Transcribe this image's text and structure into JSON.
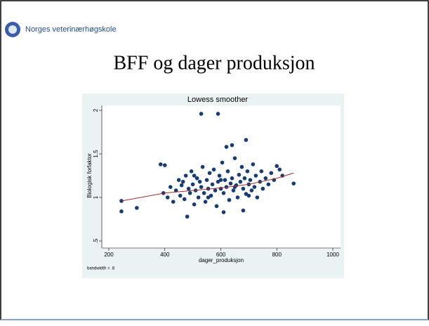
{
  "header": {
    "logo_text": "Norges veterinærhøgskole",
    "slide_title": "BFF og dager produksjon"
  },
  "chart_data": {
    "type": "scatter",
    "title": "Lowess smoother",
    "x_label": "dager_produksjon",
    "y_label": "Biologisk forfaktor",
    "note": "bandwidth = .8",
    "xlim": [
      200,
      1000
    ],
    "xticks": [
      200,
      400,
      600,
      800,
      1000
    ],
    "ylim": [
      0.5,
      2
    ],
    "yticks": [
      {
        "value": 0.5,
        "label": ".5"
      },
      1,
      1.5,
      2
    ],
    "series": [
      {
        "color": "#1a3b6e",
        "x": [
          245,
          300,
          245,
          385,
          400,
          395,
          410,
          420,
          430,
          440,
          450,
          455,
          460,
          470,
          475,
          480,
          485,
          490,
          495,
          500,
          505,
          510,
          515,
          520,
          525,
          530,
          530,
          535,
          540,
          545,
          550,
          555,
          560,
          565,
          570,
          575,
          580,
          585,
          590,
          590,
          595,
          600,
          605,
          610,
          610,
          615,
          620,
          620,
          625,
          630,
          635,
          640,
          640,
          645,
          650,
          655,
          660,
          665,
          670,
          675,
          680,
          680,
          685,
          690,
          690,
          695,
          700,
          705,
          710,
          715,
          720,
          725,
          730,
          740,
          745,
          750,
          760,
          770,
          780,
          790,
          800,
          810,
          820,
          860,
          465,
          505,
          555,
          600,
          650,
          700
        ],
        "values": [
          0.84,
          0.88,
          0.96,
          1.38,
          1.37,
          1.05,
          1.0,
          1.12,
          0.95,
          1.08,
          1.2,
          1.02,
          1.14,
          0.98,
          1.25,
          0.78,
          1.1,
          1.05,
          1.3,
          1.15,
          0.92,
          1.08,
          1.22,
          1.0,
          1.18,
          1.96,
          1.12,
          1.35,
          1.05,
          0.95,
          1.2,
          1.1,
          1.28,
          1.02,
          1.15,
          1.32,
          1.08,
          0.9,
          1.96,
          1.18,
          1.25,
          1.1,
          1.4,
          0.83,
          1.05,
          1.2,
          1.58,
          1.12,
          1.3,
          0.97,
          1.16,
          1.6,
          1.22,
          1.08,
          1.45,
          1.14,
          1.0,
          1.26,
          1.18,
          1.35,
          0.85,
          1.1,
          1.22,
          1.66,
          1.04,
          1.3,
          1.15,
          1.2,
          1.08,
          1.38,
          1.12,
          1.25,
          1.0,
          1.18,
          1.3,
          1.1,
          1.22,
          1.15,
          1.28,
          1.2,
          1.36,
          1.32,
          1.25,
          1.16,
          1.18,
          1.25,
          1.0,
          1.2,
          1.12,
          1.02
        ]
      },
      {
        "mode": "line",
        "color": "#a0302a",
        "x": [
          245,
          400,
          500,
          600,
          700,
          800,
          860
        ],
        "values": [
          0.96,
          1.05,
          1.08,
          1.11,
          1.15,
          1.22,
          1.28
        ]
      }
    ]
  }
}
